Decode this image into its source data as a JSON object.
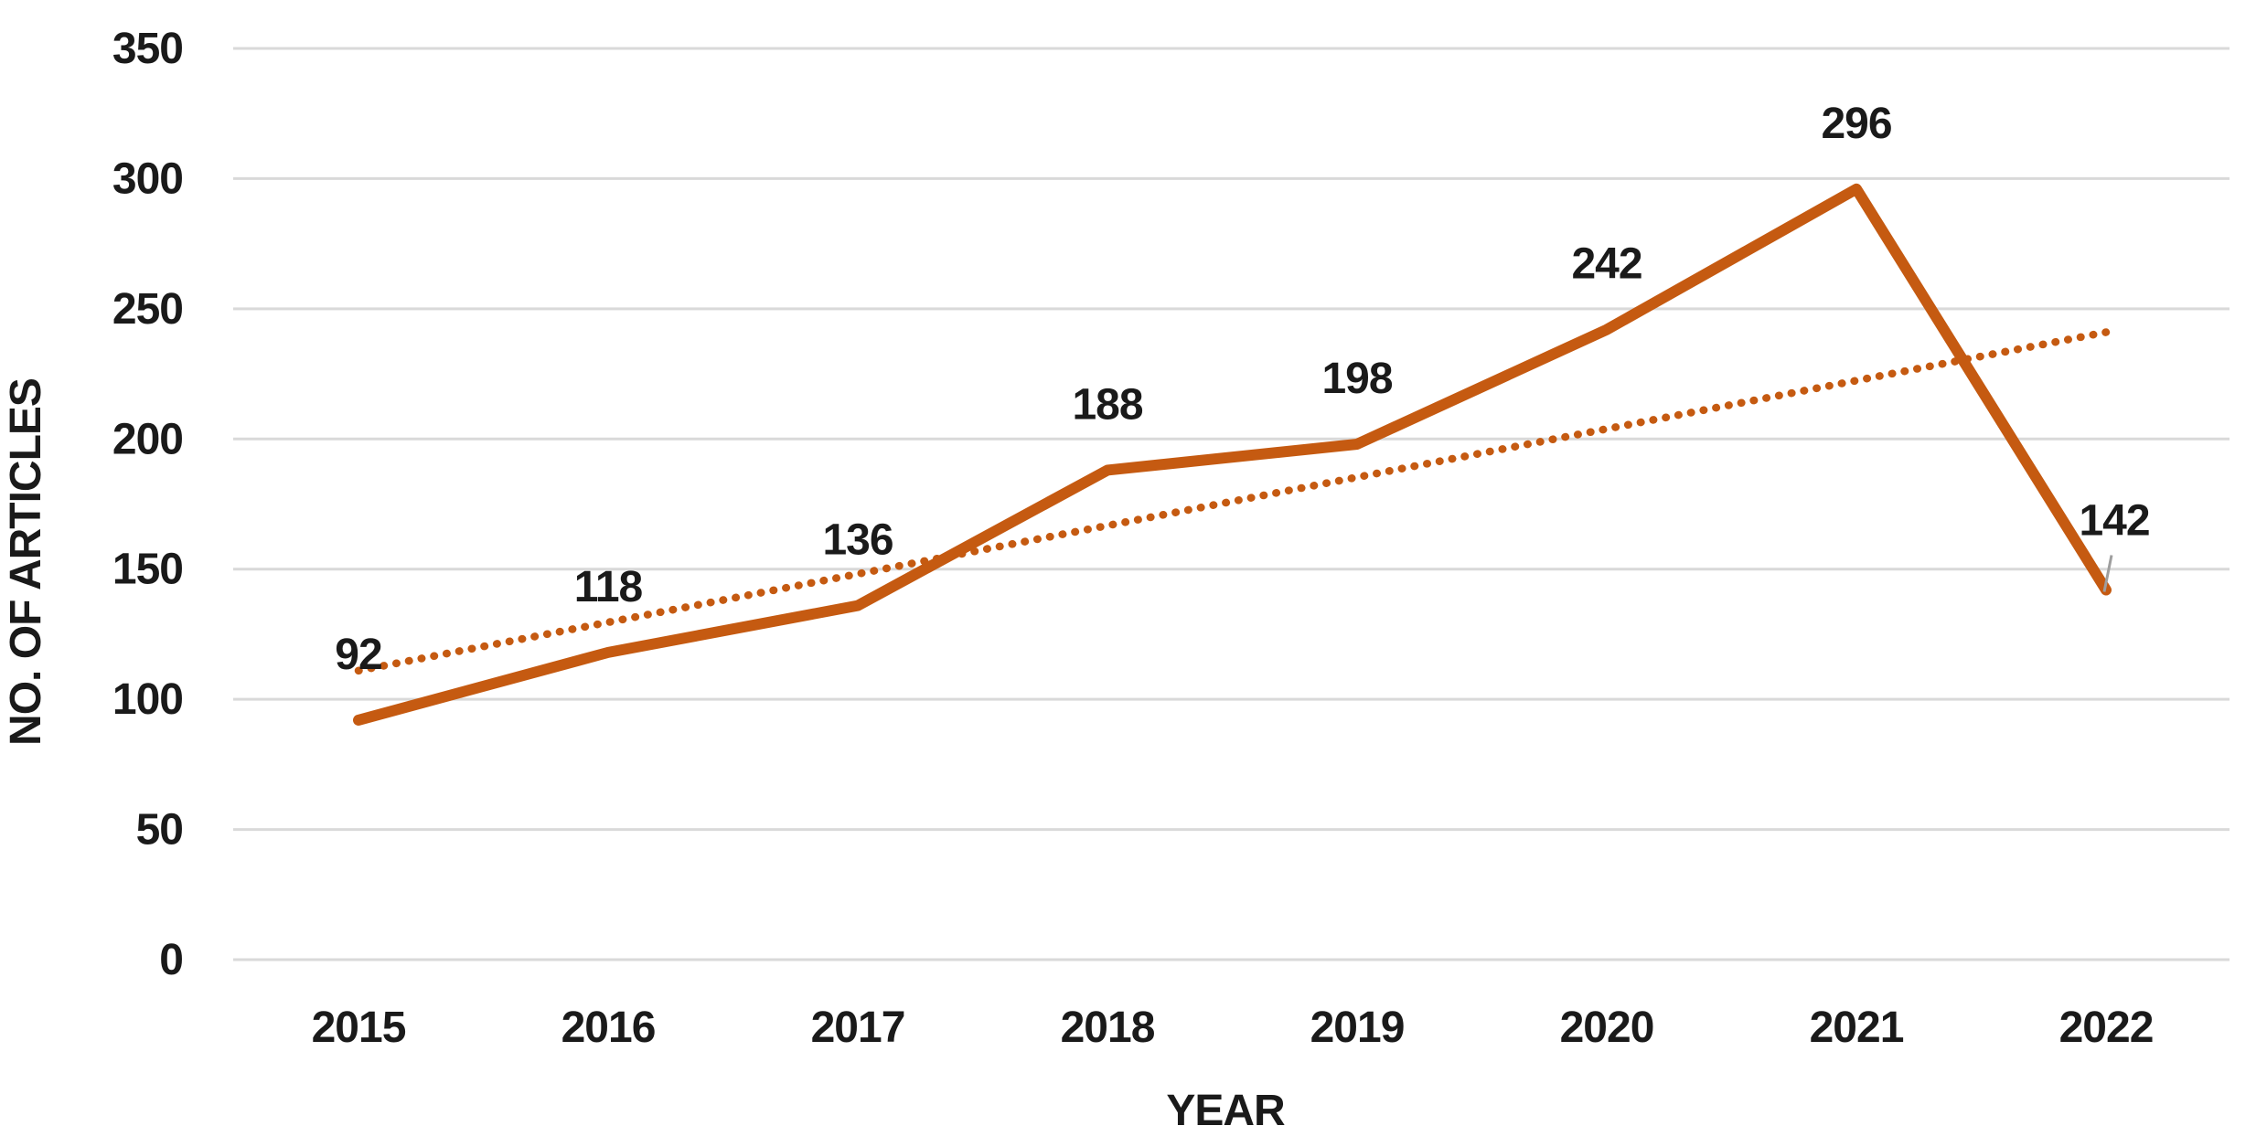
{
  "chart_data": {
    "type": "line",
    "title": "",
    "categories": [
      "2015",
      "2016",
      "2017",
      "2018",
      "2019",
      "2020",
      "2021",
      "2022"
    ],
    "series": [
      {
        "name": "No. of articles",
        "values": [
          92,
          118,
          136,
          188,
          198,
          242,
          296,
          142
        ]
      }
    ],
    "data_labels": [
      "92",
      "118",
      "136",
      "188",
      "198",
      "242",
      "296",
      "142"
    ],
    "trendline": {
      "type": "linear",
      "style": "dotted",
      "start_value": 111,
      "end_value": 241
    },
    "xlabel": "YEAR",
    "ylabel": "NO. OF ARTICLES",
    "ylim": [
      0,
      350
    ],
    "yticks": [
      350,
      300,
      250,
      200,
      150,
      100,
      50,
      0
    ],
    "grid": "horizontal-only",
    "legend": "none",
    "last_label_has_leader": true,
    "colors": {
      "line": "#C55A11",
      "trendline": "#C55A11",
      "gridline": "#D9D9D9",
      "text": "#1A1A1A",
      "leader_line": "#9E9E9E",
      "background": "#FFFFFF"
    }
  }
}
